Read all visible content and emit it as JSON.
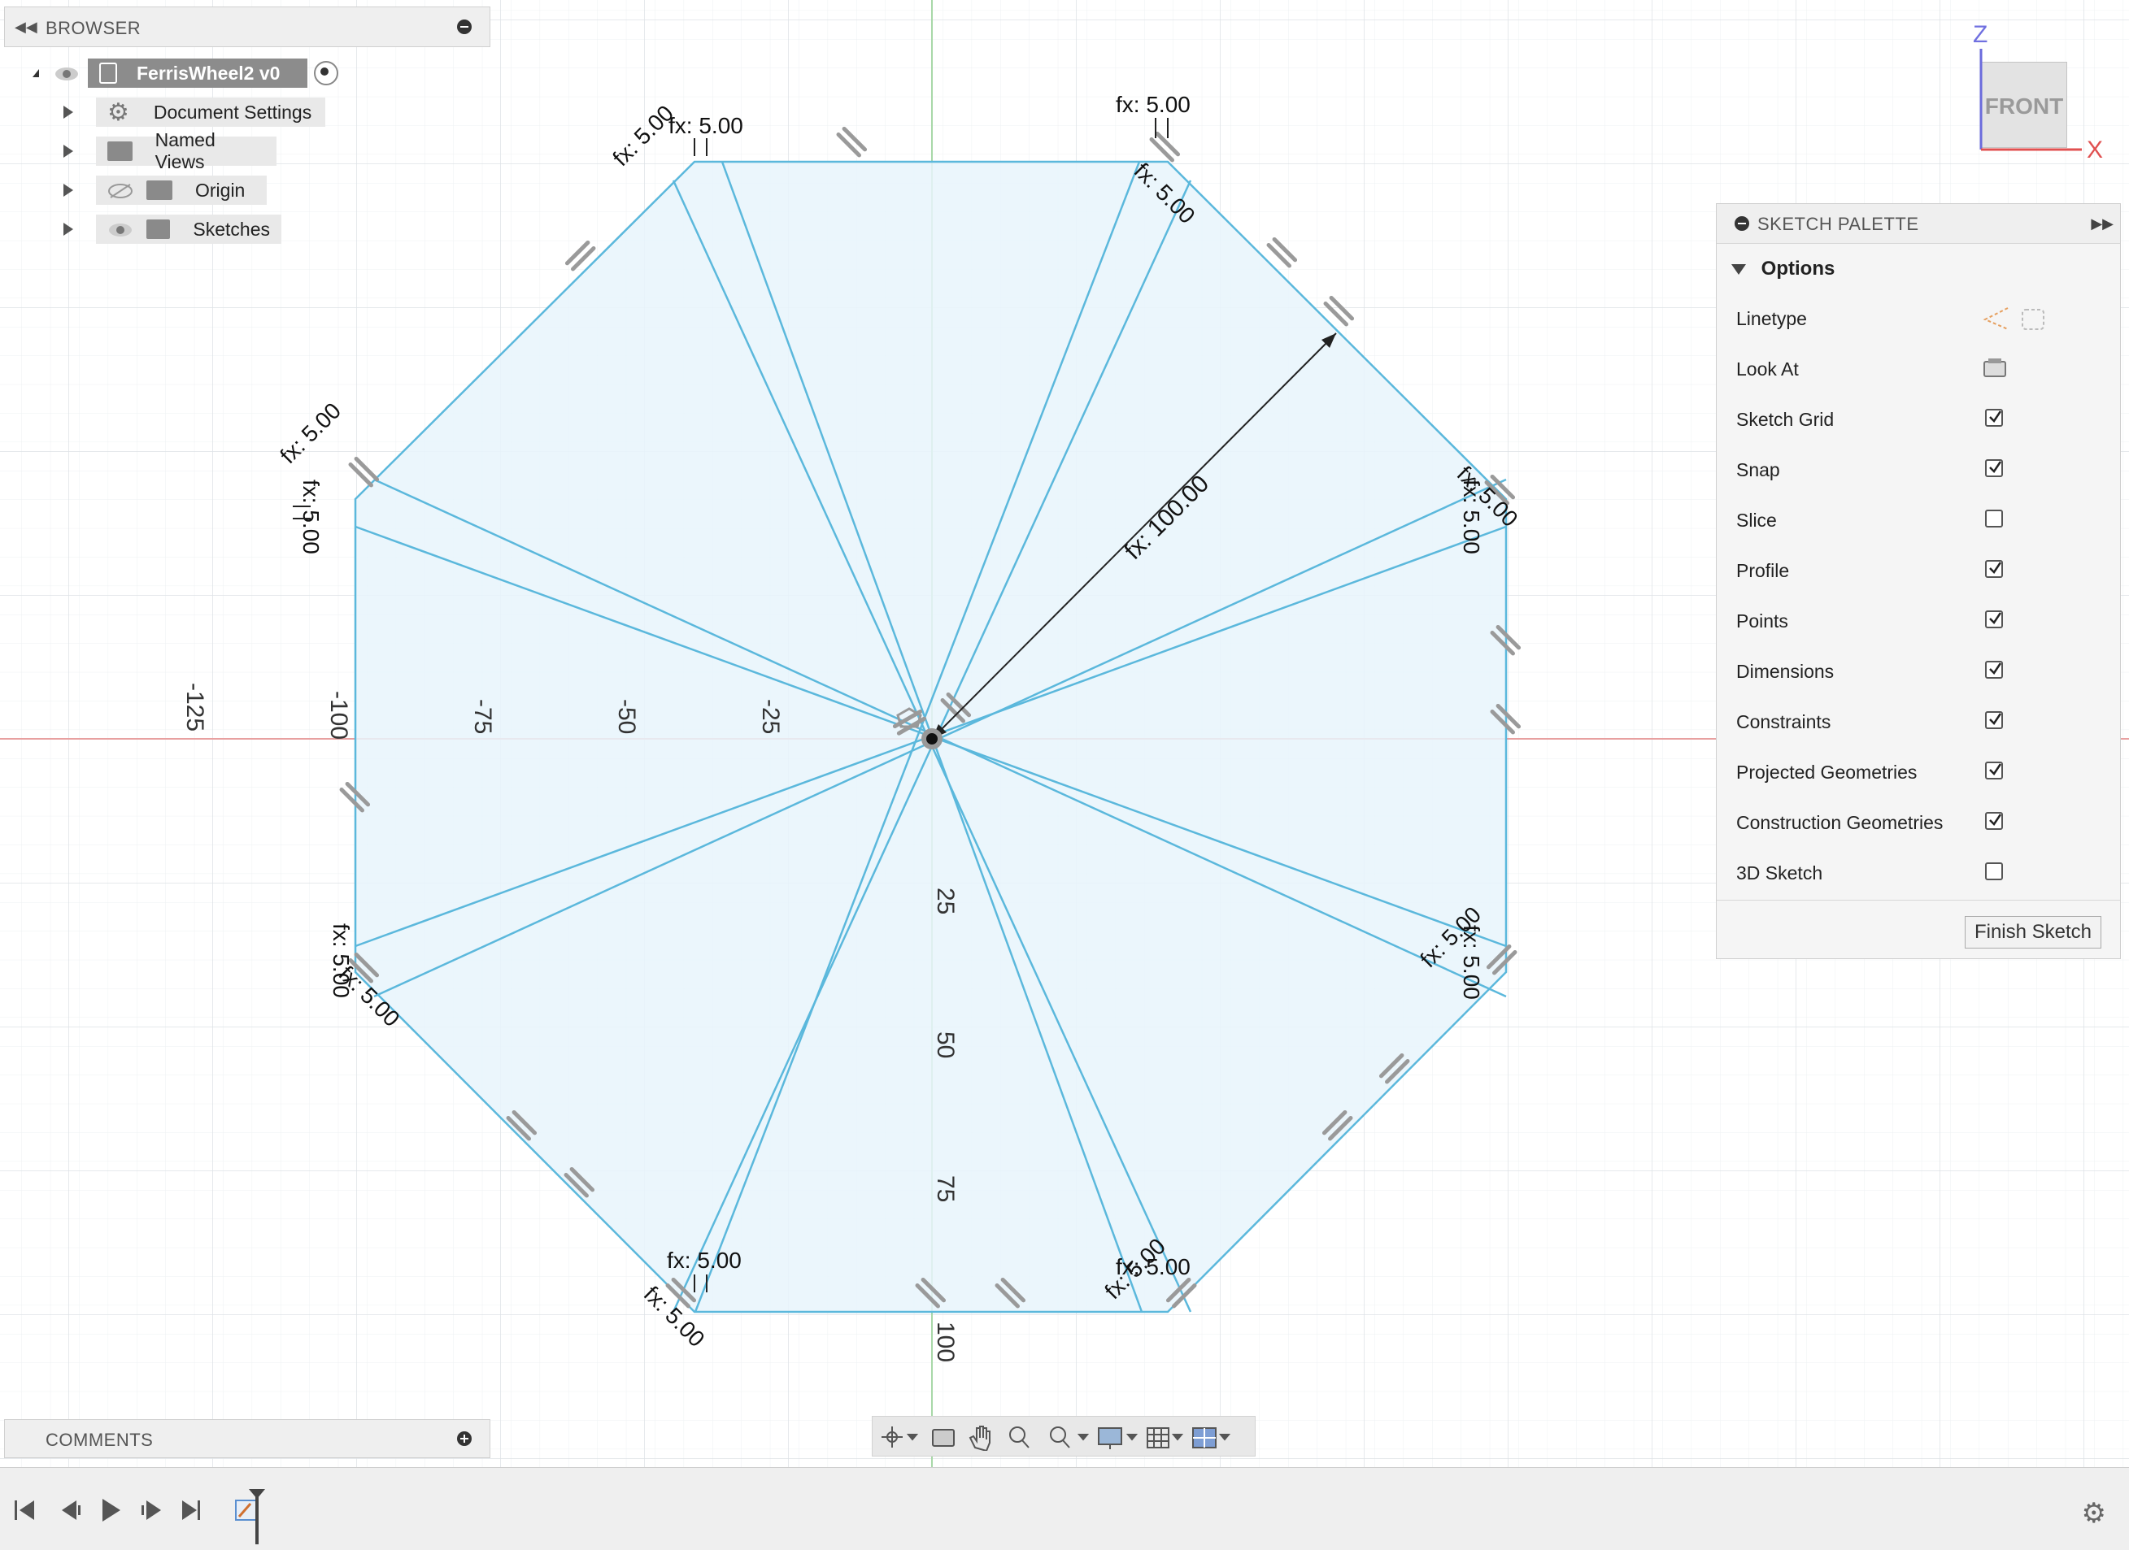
{
  "browser": {
    "title": "BROWSER",
    "root_label": "FerrisWheel2 v0",
    "items": [
      {
        "label": "Document Settings",
        "icon": "gear-icon"
      },
      {
        "label": "Named Views",
        "icon": "folder-icon"
      },
      {
        "label": "Origin",
        "icon": "folder-icon",
        "visibility": "hidden"
      },
      {
        "label": "Sketches",
        "icon": "folder-icon",
        "visibility": "visible"
      }
    ]
  },
  "comments": {
    "title": "COMMENTS"
  },
  "sketch_palette": {
    "title": "SKETCH PALETTE",
    "section": "Options",
    "rows": [
      {
        "label": "Linetype",
        "kind": "icons"
      },
      {
        "label": "Look At",
        "kind": "icon"
      },
      {
        "label": "Sketch Grid",
        "kind": "checkbox",
        "checked": true
      },
      {
        "label": "Snap",
        "kind": "checkbox",
        "checked": true
      },
      {
        "label": "Slice",
        "kind": "checkbox",
        "checked": false
      },
      {
        "label": "Profile",
        "kind": "checkbox",
        "checked": true
      },
      {
        "label": "Points",
        "kind": "checkbox",
        "checked": true
      },
      {
        "label": "Dimensions",
        "kind": "checkbox",
        "checked": true
      },
      {
        "label": "Constraints",
        "kind": "checkbox",
        "checked": true
      },
      {
        "label": "Projected Geometries",
        "kind": "checkbox",
        "checked": true
      },
      {
        "label": "Construction Geometries",
        "kind": "checkbox",
        "checked": true
      },
      {
        "label": "3D Sketch",
        "kind": "checkbox",
        "checked": false
      }
    ],
    "finish_label": "Finish Sketch"
  },
  "viewcube": {
    "face": "FRONT",
    "axis_z": "Z",
    "axis_x": "X"
  },
  "ruler": {
    "h_ticks": [
      "-125",
      "-100",
      "-75",
      "-50",
      "-25"
    ],
    "v_ticks": [
      "25",
      "50",
      "75",
      "100"
    ]
  },
  "dimensions": {
    "radius": "fx: 100.00",
    "small": "fx: 5.00",
    "overlap_a": "fx: 5.00",
    "overlap_b": "fx: 5.00"
  },
  "colors": {
    "sketch_line": "#5bb8dc",
    "profile_fill": "#e6f3fa",
    "grid": "#e6eaee",
    "axis_red": "#e06060",
    "axis_green": "#7ac27a"
  }
}
